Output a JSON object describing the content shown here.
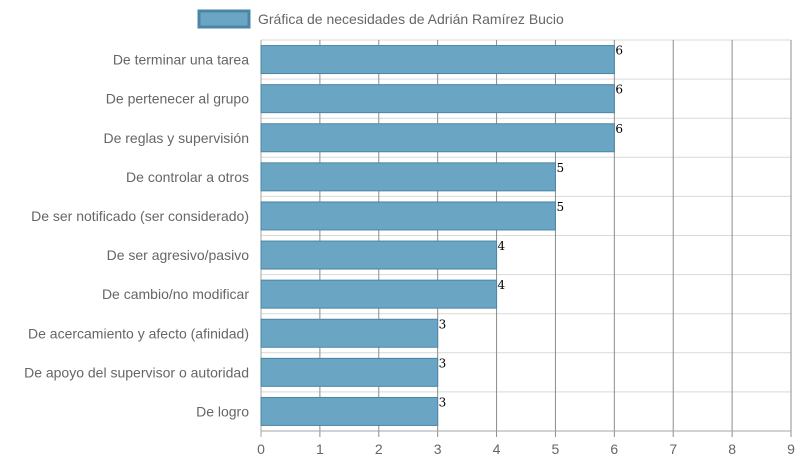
{
  "chart_data": {
    "type": "bar",
    "orientation": "horizontal",
    "legend": {
      "label": "Gráfica de necesidades de Adrián Ramírez Bucio",
      "placement": "top"
    },
    "categories": [
      "De terminar una tarea",
      "De pertenecer al grupo",
      "De reglas y supervisión",
      "De controlar a otros",
      "De ser notificado (ser considerado)",
      "De ser agresivo/pasivo",
      "De cambio/no modificar",
      "De acercamiento y afecto (afinidad)",
      "De apoyo del supervisor o autoridad",
      "De logro"
    ],
    "series": [
      {
        "name": "Gráfica de necesidades de Adrián Ramírez Bucio",
        "values": [
          6,
          6,
          6,
          5,
          5,
          4,
          4,
          3,
          3,
          3
        ]
      }
    ],
    "xlim": [
      0,
      9
    ],
    "xticks": [
      "0",
      "1",
      "2",
      "3",
      "4",
      "5",
      "6",
      "7",
      "8",
      "9"
    ],
    "grid": true,
    "colors": {
      "bar_fill": "#6ba5c4",
      "bar_stroke": "#4b86a6",
      "grid": "#d9d9d9",
      "vgrid": "#8c8c8c",
      "axis": "#a6a6a6"
    }
  }
}
